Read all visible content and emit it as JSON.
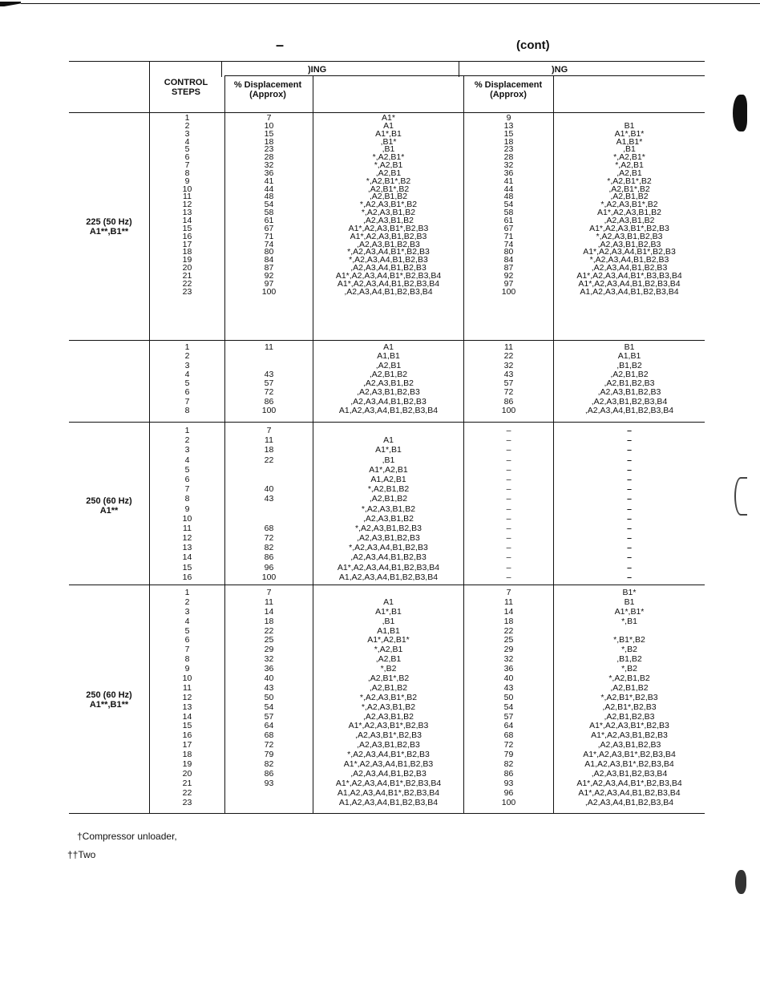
{
  "header": {
    "dash": "–",
    "cont": "(cont)",
    "left_group_fragment": ")ING",
    "right_group_fragment": ")NG",
    "control_steps": "CONTROL STEPS",
    "pct_disp": "% Displacement (Approx)"
  },
  "sections": [
    {
      "label_lines": [
        "225 (50 Hz)",
        "A1**,B1**"
      ],
      "steps": [
        "1",
        "2",
        "3",
        "4",
        "5",
        "6",
        "7",
        "8",
        "9",
        "10",
        "11",
        "12",
        "13",
        "14",
        "15",
        "16",
        "17",
        "18",
        "19",
        "20",
        "21",
        "22",
        "23"
      ],
      "left_pct": [
        "7",
        "10",
        "15",
        "18",
        "23",
        "28",
        "32",
        "36",
        "41",
        "44",
        "48",
        "54",
        "58",
        "61",
        "67",
        "71",
        "74",
        "80",
        "84",
        "87",
        "92",
        "97",
        "100"
      ],
      "left_cyl": [
        "A1*",
        "A1",
        "A1*,B1",
        ",B1*",
        ",B1",
        "*,A2,B1*",
        "*,A2,B1",
        ",A2,B1",
        "*,A2,B1*,B2",
        ",A2,B1*,B2",
        ",A2,B1,B2",
        "*,A2,A3,B1*,B2",
        "*,A2,A3,B1,B2",
        ",A2,A3,B1,B2",
        "A1*,A2,A3,B1*,B2,B3",
        "A1*,A2,A3,B1,B2,B3",
        ",A2,A3,B1,B2,B3",
        "*,A2,A3,A4,B1*,B2,B3",
        "*,A2,A3,A4,B1,B2,B3",
        ",A2,A3,A4,B1,B2,B3",
        "A1*,A2,A3,A4,B1*,B2,B3,B4",
        "A1*,A2,A3,A4,B1,B2,B3,B4",
        ",A2,A3,A4,B1,B2,B3,B4"
      ],
      "right_pct": [
        "9",
        "13",
        "15",
        "18",
        "23",
        "28",
        "32",
        "36",
        "41",
        "44",
        "48",
        "54",
        "58",
        "61",
        "67",
        "71",
        "74",
        "80",
        "84",
        "87",
        "92",
        "97",
        "100"
      ],
      "right_cyl": [
        "",
        "B1",
        "A1*,B1*",
        "A1,B1*",
        ",B1",
        "*,A2,B1*",
        "*,A2,B1",
        ",A2,B1",
        "*,A2,B1*,B2",
        ",A2,B1*,B2",
        ",A2,B1,B2",
        "*,A2,A3,B1*,B2",
        "A1*,A2,A3,B1,B2",
        ",A2,A3,B1,B2",
        "A1*,A2,A3,B1*,B2,B3",
        "*,A2,A3,B1,B2,B3",
        ",A2,A3,B1,B2,B3",
        "A1*,A2,A3,A4,B1*,B2,B3",
        "*,A2,A3,A4,B1,B2,B3",
        ",A2,A3,A4,B1,B2,B3",
        "A1*,A2,A3,A4,B1*,B3,B3,B4",
        "A1*,A2,A3,A4,B1,B2,B3,B4",
        "A1,A2,A3,A4,B1,B2,B3,B4"
      ]
    },
    {
      "label_lines": [],
      "steps": [
        "1",
        "2",
        "3",
        "4",
        "5",
        "6",
        "7",
        "8"
      ],
      "left_pct": [
        "11",
        "",
        "",
        "43",
        "57",
        "72",
        "86",
        "100"
      ],
      "left_cyl": [
        "A1",
        "A1,B1",
        ",A2,B1",
        ",A2,B1,B2",
        ",A2,A3,B1,B2",
        ",A2,A3,B1,B2,B3",
        ",A2,A3,A4,B1,B2,B3",
        "A1,A2,A3,A4,B1,B2,B3,B4"
      ],
      "right_pct": [
        "11",
        "22",
        "32",
        "43",
        "57",
        "72",
        "86",
        "100"
      ],
      "right_cyl": [
        "B1",
        "A1,B1",
        ",B1,B2",
        ",A2,B1,B2",
        ",A2,B1,B2,B3",
        ",A2,A3,B1,B2,B3",
        ",A2,A3,B1,B2,B3,B4",
        ",A2,A3,A4,B1,B2,B3,B4"
      ]
    },
    {
      "label_lines": [
        "250 (60 Hz)",
        "A1**"
      ],
      "steps": [
        "1",
        "2",
        "3",
        "4",
        "5",
        "6",
        "7",
        "8",
        "9",
        "10",
        "11",
        "12",
        "13",
        "14",
        "15",
        "16"
      ],
      "left_pct": [
        "7",
        "11",
        "18",
        "22",
        "",
        "",
        "40",
        "43",
        "",
        "",
        "68",
        "72",
        "82",
        "86",
        "96",
        "100"
      ],
      "left_cyl": [
        "",
        "A1",
        "A1*,B1",
        ",B1",
        "A1*,A2,B1",
        "A1,A2,B1",
        "*,A2,B1,B2",
        ",A2,B1,B2",
        "*,A2,A3,B1,B2",
        ",A2,A3,B1,B2",
        "*,A2,A3,B1,B2,B3",
        ",A2,A3,B1,B2,B3",
        "*,A2,A3,A4,B1,B2,B3",
        ",A2,A3,A4,B1,B2,B3",
        "A1*,A2,A3,A4,B1,B2,B3,B4",
        "A1,A2,A3,A4,B1,B2,B3,B4"
      ],
      "right_pct": [
        "–",
        "–",
        "–",
        "–",
        "–",
        "–",
        "–",
        "–",
        "–",
        "–",
        "–",
        "–",
        "–",
        "–",
        "–",
        "–"
      ],
      "right_cyl": [
        "–",
        "–",
        "–",
        "–",
        "–",
        "–",
        "–",
        "–",
        "–",
        "–",
        "–",
        "–",
        "–",
        "–",
        "–",
        "–"
      ]
    },
    {
      "label_lines": [
        "250 (60 Hz)",
        "A1**,B1**"
      ],
      "steps": [
        "1",
        "2",
        "3",
        "4",
        "5",
        "6",
        "7",
        "8",
        "9",
        "10",
        "11",
        "12",
        "13",
        "14",
        "15",
        "16",
        "17",
        "18",
        "19",
        "20",
        "21",
        "22",
        "23"
      ],
      "left_pct": [
        "7",
        "11",
        "14",
        "18",
        "22",
        "25",
        "29",
        "32",
        "36",
        "40",
        "43",
        "50",
        "54",
        "57",
        "64",
        "68",
        "72",
        "79",
        "82",
        "86",
        "93",
        "",
        ""
      ],
      "left_cyl": [
        "",
        "A1",
        "A1*,B1",
        ",B1",
        "A1,B1",
        "A1*,A2,B1*",
        "*,A2,B1",
        ",A2,B1",
        "*,B2",
        ",A2,B1*,B2",
        ",A2,B1,B2",
        "*,A2,A3,B1*,B2",
        "*,A2,A3,B1,B2",
        ",A2,A3,B1,B2",
        "A1*,A2,A3,B1*,B2,B3",
        ",A2,A3,B1*,B2,B3",
        ",A2,A3,B1,B2,B3",
        "*,A2,A3,A4,B1*,B2,B3",
        "A1*,A2,A3,A4,B1,B2,B3",
        ",A2,A3,A4,B1,B2,B3",
        "A1*,A2,A3,A4,B1*,B2,B3,B4",
        "A1,A2,A3,A4,B1*,B2,B3,B4",
        "A1,A2,A3,A4,B1,B2,B3,B4"
      ],
      "right_pct": [
        "7",
        "11",
        "14",
        "18",
        "22",
        "25",
        "29",
        "32",
        "36",
        "40",
        "43",
        "50",
        "54",
        "57",
        "64",
        "68",
        "72",
        "79",
        "82",
        "86",
        "93",
        "96",
        "100"
      ],
      "right_cyl": [
        "B1*",
        "B1",
        "A1*,B1*",
        "*,B1",
        "",
        "*,B1*,B2",
        "*,B2",
        ",B1,B2",
        "*,B2",
        "*,A2,B1,B2",
        ",A2,B1,B2",
        "*,A2,B1*,B2,B3",
        ",A2,B1*,B2,B3",
        ",A2,B1,B2,B3",
        "A1*,A2,A3,B1*,B2,B3",
        "A1*,A2,A3,B1,B2,B3",
        ",A2,A3,B1,B2,B3",
        "A1*,A2,A3,B1*,B2,B3,B4",
        "A1,A2,A3,B1*,B2,B3,B4",
        ",A2,A3,B1,B2,B3,B4",
        "A1*,A2,A3,A4,B1*,B2,B3,B4",
        "A1*,A2,A3,A4,B1,B2,B3,B4",
        ",A2,A3,A4,B1,B2,B3,B4"
      ]
    }
  ],
  "footnotes": {
    "dagger": "†Compressor unloader,",
    "double_dagger": "††Two"
  }
}
